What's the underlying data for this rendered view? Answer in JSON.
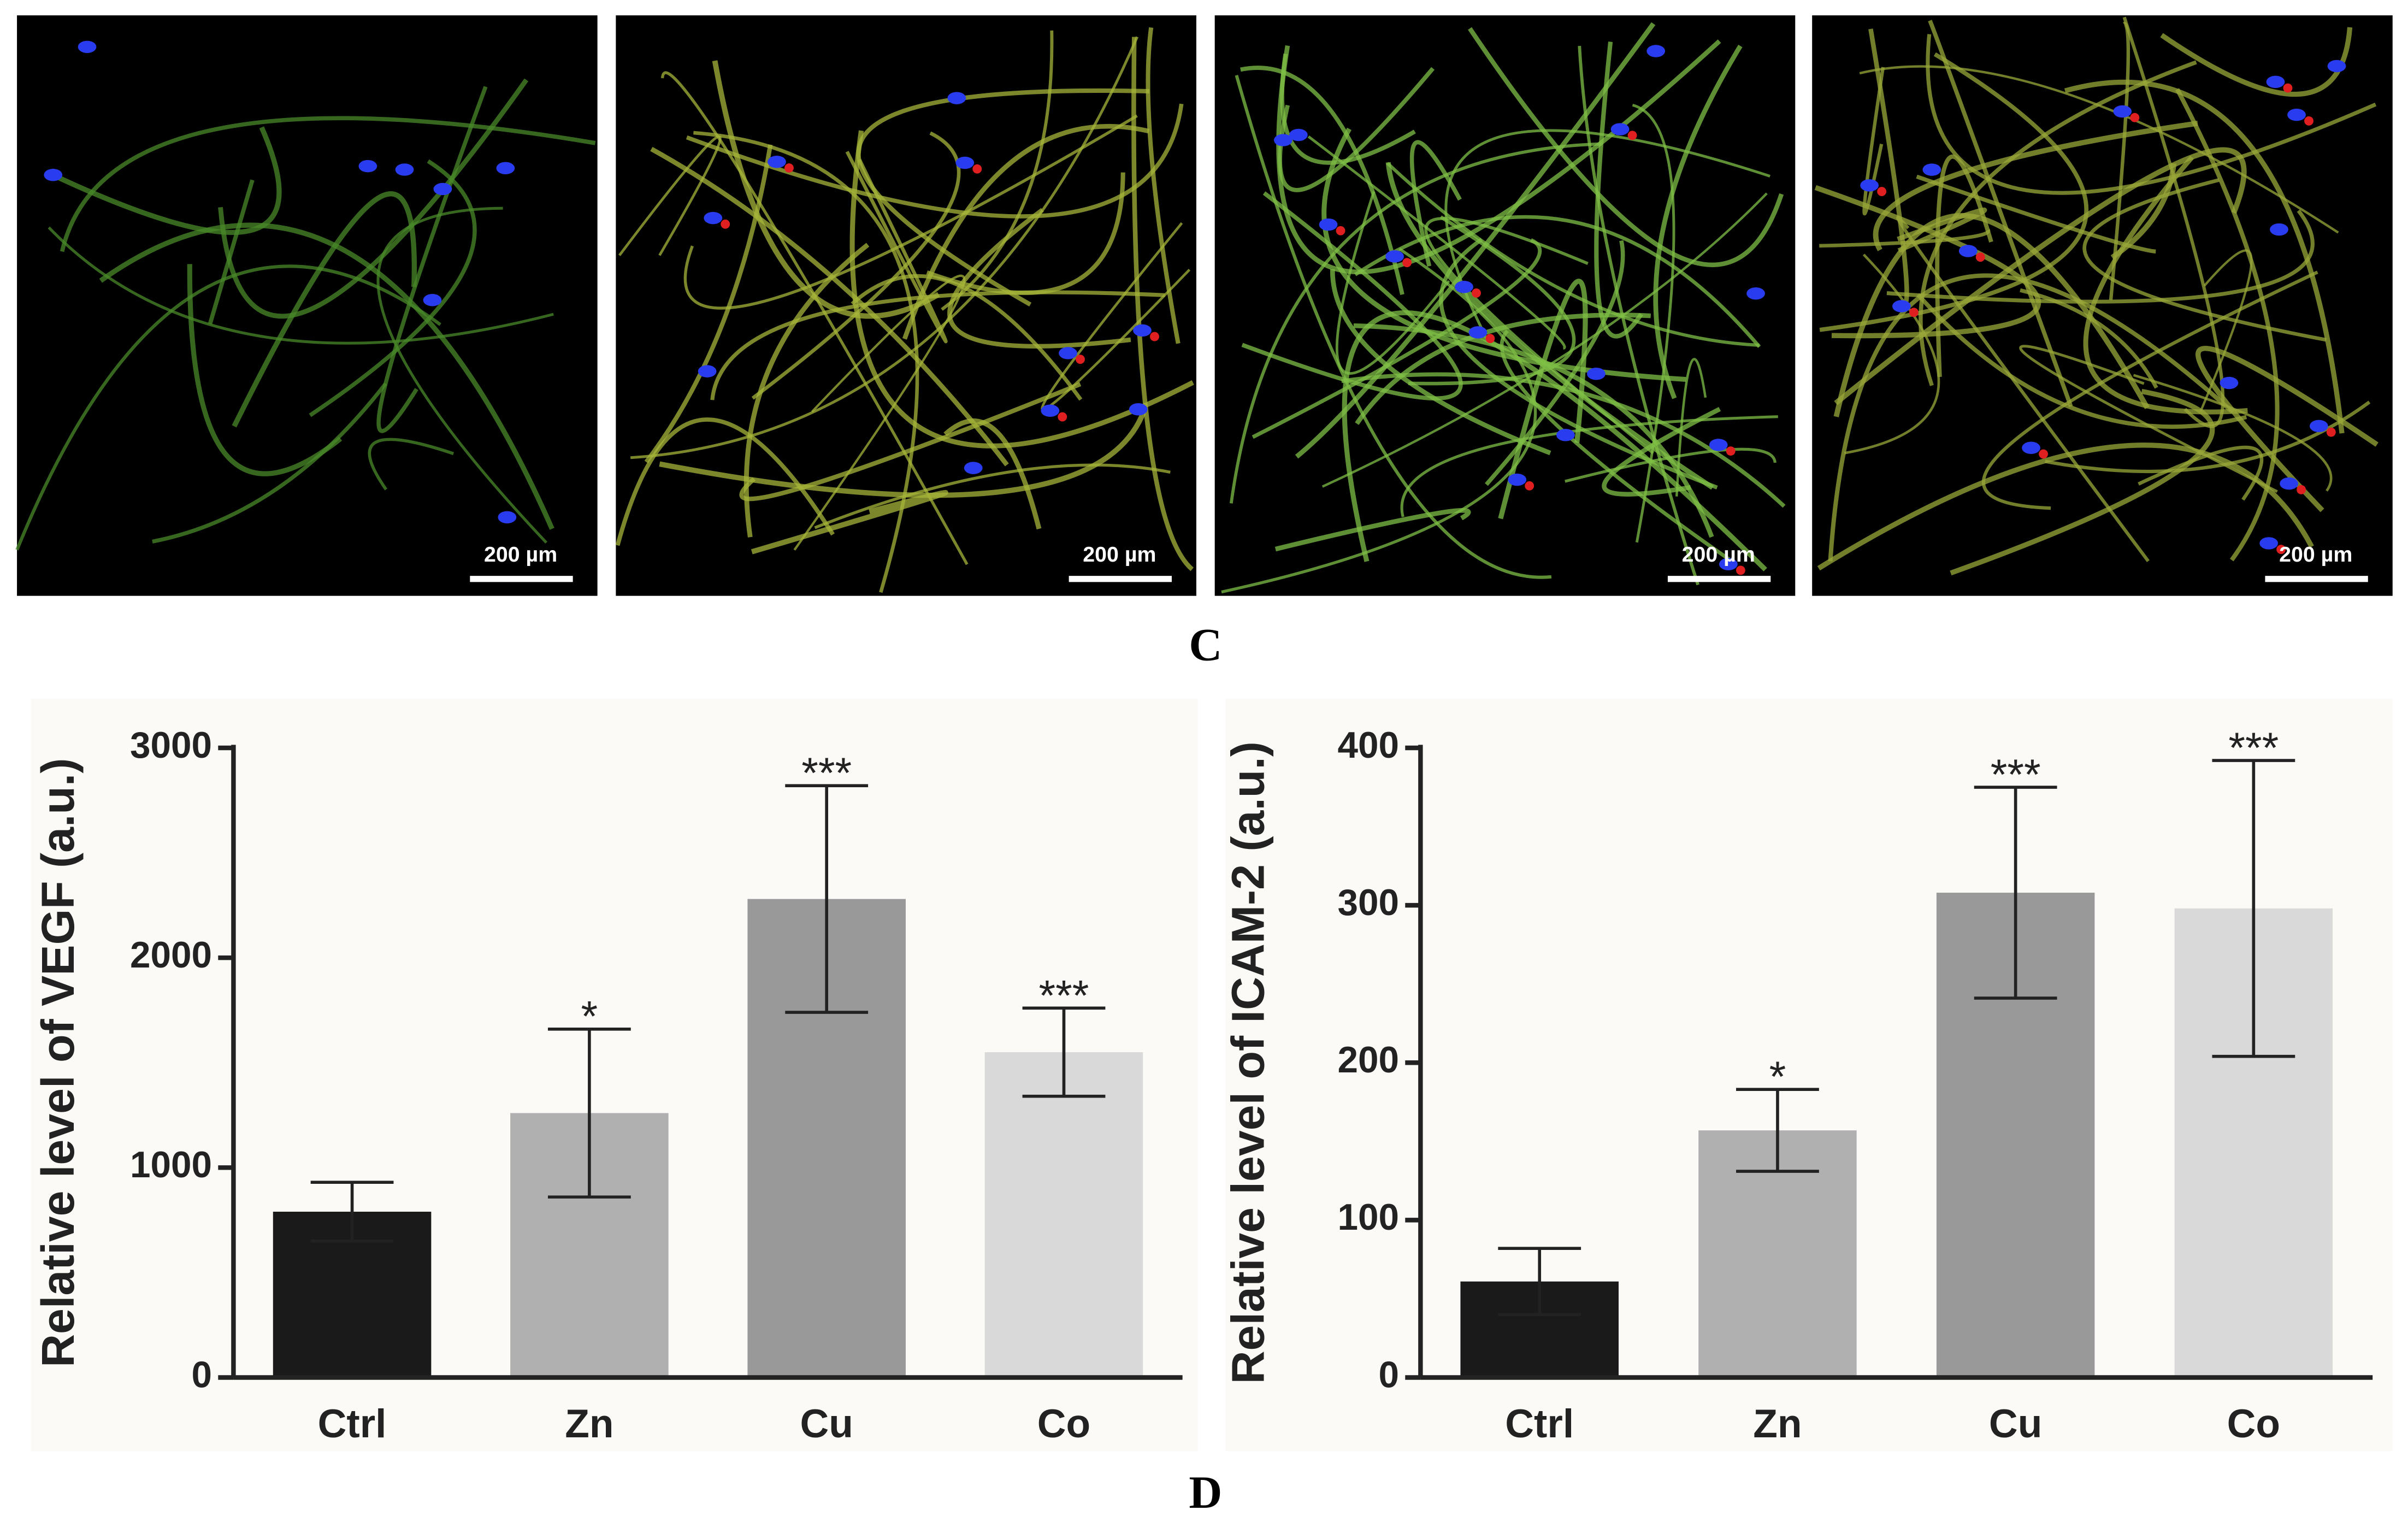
{
  "panel_labels": [
    "C",
    "D"
  ],
  "images": [
    {
      "scale_bar": "200 µm"
    },
    {
      "scale_bar": "200 µm"
    },
    {
      "scale_bar": "200 µm"
    },
    {
      "scale_bar": "200 µm"
    }
  ],
  "chart_data": [
    {
      "type": "bar",
      "y_label": "Relative level of VEGF (a.u.)",
      "categories": [
        "Ctrl",
        "Zn",
        "Cu",
        "Co"
      ],
      "values": [
        790,
        1260,
        2280,
        1550
      ],
      "errors": [
        140,
        400,
        540,
        210
      ],
      "annotations": [
        null,
        "*",
        "***",
        "***"
      ],
      "colors": [
        "#1a1a1a",
        "#b0b0b0",
        "#999999",
        "#d9d9d9"
      ],
      "ylim": [
        0,
        3000
      ],
      "yticks": [
        0,
        1000,
        2000,
        3000
      ]
    },
    {
      "type": "bar",
      "y_label": "Relative level of ICAM-2 (a.u.)",
      "categories": [
        "Ctrl",
        "Zn",
        "Cu",
        "Co"
      ],
      "values": [
        61,
        157,
        308,
        298
      ],
      "errors": [
        21,
        26,
        67,
        94
      ],
      "annotations": [
        null,
        "*",
        "***",
        "***"
      ],
      "colors": [
        "#1a1a1a",
        "#b0b0b0",
        "#999999",
        "#d9d9d9"
      ],
      "ylim": [
        0,
        400
      ],
      "yticks": [
        0,
        100,
        200,
        300,
        400
      ]
    }
  ]
}
